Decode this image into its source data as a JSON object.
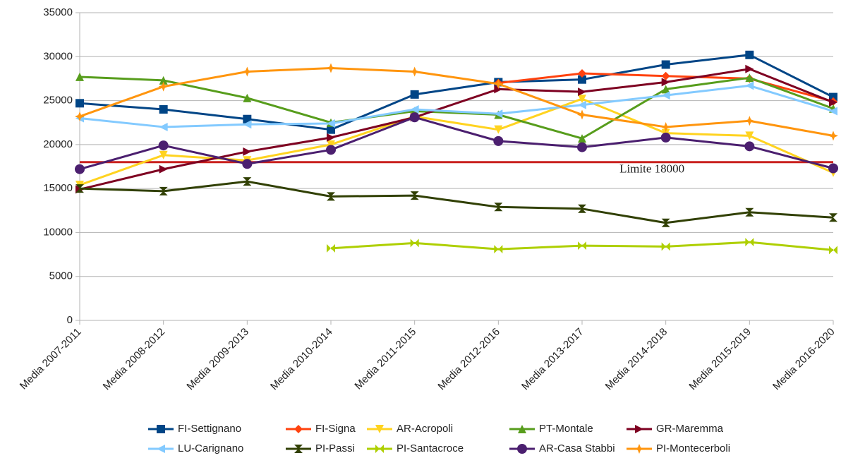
{
  "chart_data": {
    "type": "line",
    "categories": [
      "Media 2007-2011",
      "Media 2008-2012",
      "Media 2009-2013",
      "Media 2010-2014",
      "Media 2011-2015",
      "Media 2012-2016",
      "Media 2013-2017",
      "Media 2014-2018",
      "Media 2015-2019",
      "Media 2016-2020"
    ],
    "ylim": [
      0,
      35000
    ],
    "yticks": [
      0,
      5000,
      10000,
      15000,
      20000,
      25000,
      30000,
      35000
    ],
    "grid": true,
    "series": [
      {
        "name": "FI-Settignano",
        "color": "#004586",
        "marker": "square",
        "values": [
          24700,
          24000,
          22900,
          21700,
          25700,
          27100,
          27400,
          29100,
          30200,
          25400
        ]
      },
      {
        "name": "FI-Signa",
        "color": "#ff420e",
        "marker": "diamond",
        "values": [
          null,
          null,
          null,
          null,
          null,
          27000,
          28100,
          27800,
          27500,
          24900
        ]
      },
      {
        "name": "AR-Acropoli",
        "color": "#ffd320",
        "marker": "triangle-down",
        "values": [
          15400,
          18800,
          18200,
          20000,
          23200,
          21700,
          25200,
          21300,
          21000,
          16800
        ]
      },
      {
        "name": "PT-Montale",
        "color": "#579d1c",
        "marker": "triangle-up",
        "values": [
          27700,
          27300,
          25300,
          22500,
          23800,
          23400,
          20700,
          26300,
          27600,
          24100
        ]
      },
      {
        "name": "GR-Maremma",
        "color": "#7e0021",
        "marker": "triangle-right",
        "values": [
          14900,
          17200,
          19200,
          20800,
          23100,
          26300,
          26000,
          27100,
          28600,
          24800
        ]
      },
      {
        "name": "LU-Carignano",
        "color": "#83caff",
        "marker": "triangle-left",
        "values": [
          23000,
          22000,
          22300,
          22400,
          24000,
          23500,
          24500,
          25600,
          26700,
          23800
        ]
      },
      {
        "name": "PI-Passi",
        "color": "#314004",
        "marker": "bowtie-v",
        "values": [
          15000,
          14700,
          15800,
          14100,
          14200,
          12900,
          12700,
          11100,
          12300,
          11700
        ]
      },
      {
        "name": "PI-Santacroce",
        "color": "#aecf00",
        "marker": "bowtie-h",
        "values": [
          null,
          null,
          null,
          8200,
          8800,
          8100,
          8500,
          8400,
          8900,
          8000
        ]
      },
      {
        "name": "AR-Casa Stabbi",
        "color": "#4b1f6f",
        "marker": "circle",
        "values": [
          17200,
          19900,
          17800,
          19400,
          23100,
          20400,
          19700,
          20800,
          19800,
          17300
        ]
      },
      {
        "name": "PI-Montecerboli",
        "color": "#ff950e",
        "marker": "star",
        "values": [
          23200,
          26600,
          28300,
          28700,
          28300,
          26900,
          23400,
          22000,
          22700,
          21000
        ]
      }
    ],
    "annotation": {
      "text": "Limite 18000",
      "value": 18000,
      "color": "#c9211e"
    }
  }
}
